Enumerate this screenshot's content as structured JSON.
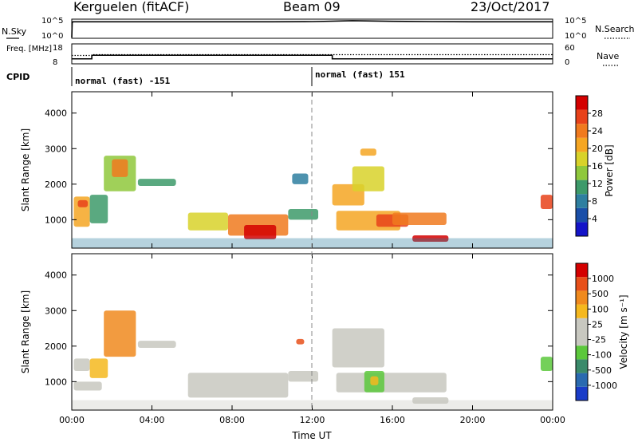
{
  "header": {
    "station": "Kerguelen (fitACF)",
    "beam": "Beam 09",
    "date": "23/Oct/2017"
  },
  "colors": {
    "power_scale": [
      "#1414c8",
      "#1a4fa8",
      "#2e7fa0",
      "#3d9a6a",
      "#8fc83c",
      "#d8d22a",
      "#f5a623",
      "#f07a1e",
      "#e8421a",
      "#d40000"
    ],
    "velocity_scale": [
      "#1a3cc8",
      "#2a6ab0",
      "#3a8a6a",
      "#5cc83c",
      "#c8c8c0",
      "#c8c8c0",
      "#f5b81e",
      "#f08a1e",
      "#e8501a",
      "#d40000"
    ]
  },
  "chart_data": [
    {
      "panel": "nsky_nsearch",
      "type": "line",
      "left_label": "N.Sky",
      "right_label": "N.Search",
      "left_ticks": [
        "10^5",
        "10^0"
      ],
      "right_ticks": [
        "10^5",
        "10^0"
      ],
      "series": [
        {
          "name": "N.Sky",
          "x": [
            0,
            0.02,
            0.05,
            2,
            6,
            10,
            12,
            14,
            16,
            18,
            20,
            22,
            24
          ],
          "y": [
            0.2,
            4.0,
            4.3,
            4.3,
            4.3,
            4.3,
            4.35,
            4.6,
            4.45,
            4.35,
            4.3,
            4.3,
            4.3
          ]
        }
      ],
      "ylim": [
        0,
        5
      ]
    },
    {
      "panel": "freq_nave",
      "type": "line",
      "left_label": "Freq. [MHz]",
      "right_label": "Nave",
      "left_ticks": [
        "18",
        "8"
      ],
      "right_ticks": [
        "60",
        "0"
      ],
      "series": [
        {
          "name": "Freq.",
          "x": [
            0,
            1.0,
            1.0,
            13.0,
            13.0,
            24
          ],
          "y": [
            10.5,
            10.5,
            12.3,
            12.3,
            10.5,
            10.5
          ]
        },
        {
          "name": "Nave",
          "x": [
            0,
            1.0,
            1.0,
            13.0,
            13.0,
            24
          ],
          "y": [
            12.2,
            12.2,
            12.6,
            12.6,
            12.6,
            12.6
          ]
        }
      ],
      "ylim": [
        8,
        18
      ]
    },
    {
      "panel": "cpid",
      "label": "CPID",
      "annotations": [
        {
          "text": "normal (fast) -151",
          "x": 0
        },
        {
          "text": "normal (fast) 151",
          "x": 12
        }
      ]
    },
    {
      "panel": "power",
      "type": "heatmap",
      "ylabel": "Slant Range [km]",
      "yticks": [
        1000,
        2000,
        3000,
        4000
      ],
      "ylim": [
        200,
        4600
      ],
      "xlim": [
        0,
        24
      ],
      "colorbar_label": "Power [dB]",
      "colorbar_ticks": [
        "28",
        "24",
        "20",
        "16",
        "12",
        "8",
        "4"
      ],
      "regions": [
        {
          "t0": 0.1,
          "t1": 0.9,
          "r0": 800,
          "r1": 1650,
          "c": 6
        },
        {
          "t0": 0.3,
          "t1": 0.8,
          "r0": 1350,
          "r1": 1550,
          "c": 8
        },
        {
          "t0": 0.9,
          "t1": 1.8,
          "r0": 900,
          "r1": 1700,
          "c": 3
        },
        {
          "t0": 1.6,
          "t1": 3.2,
          "r0": 1800,
          "r1": 2800,
          "c": 4
        },
        {
          "t0": 2.0,
          "t1": 2.8,
          "r0": 2200,
          "r1": 2700,
          "c": 7
        },
        {
          "t0": 3.3,
          "t1": 5.2,
          "r0": 1950,
          "r1": 2150,
          "c": 3
        },
        {
          "t0": 5.8,
          "t1": 7.8,
          "r0": 700,
          "r1": 1200,
          "c": 5
        },
        {
          "t0": 7.8,
          "t1": 10.8,
          "r0": 550,
          "r1": 1150,
          "c": 7
        },
        {
          "t0": 8.6,
          "t1": 10.2,
          "r0": 450,
          "r1": 850,
          "c": 9
        },
        {
          "t0": 10.8,
          "t1": 12.3,
          "r0": 1000,
          "r1": 1300,
          "c": 3
        },
        {
          "t0": 11.0,
          "t1": 11.8,
          "r0": 2000,
          "r1": 2300,
          "c": 2
        },
        {
          "t0": 13.0,
          "t1": 14.6,
          "r0": 1400,
          "r1": 2000,
          "c": 6
        },
        {
          "t0": 14.0,
          "t1": 15.6,
          "r0": 1800,
          "r1": 2500,
          "c": 5
        },
        {
          "t0": 13.2,
          "t1": 16.4,
          "r0": 700,
          "r1": 1250,
          "c": 6
        },
        {
          "t0": 15.2,
          "t1": 16.8,
          "r0": 800,
          "r1": 1150,
          "c": 8
        },
        {
          "t0": 16.0,
          "t1": 18.7,
          "r0": 850,
          "r1": 1200,
          "c": 7
        },
        {
          "t0": 17.0,
          "t1": 18.8,
          "r0": 380,
          "r1": 560,
          "c": 9
        },
        {
          "t0": 14.4,
          "t1": 15.2,
          "r0": 2800,
          "r1": 3000,
          "c": 6
        },
        {
          "t0": 23.4,
          "t1": 24.0,
          "r0": 1300,
          "r1": 1700,
          "c": 8
        }
      ]
    },
    {
      "panel": "velocity",
      "type": "heatmap",
      "ylabel": "Slant Range [km]",
      "yticks": [
        1000,
        2000,
        3000,
        4000
      ],
      "ylim": [
        200,
        4600
      ],
      "xlim": [
        0,
        24
      ],
      "xlabel": "Time UT",
      "xticks": [
        "00:00",
        "04:00",
        "08:00",
        "12:00",
        "16:00",
        "20:00",
        "00:00"
      ],
      "colorbar_label": "Velocity [m s⁻¹]",
      "colorbar_ticks": [
        "1000",
        "500",
        "100",
        "25",
        "-25",
        "-100",
        "-500",
        "-1000"
      ],
      "regions": [
        {
          "t0": 0.1,
          "t1": 0.9,
          "r0": 1300,
          "r1": 1650,
          "c": 4
        },
        {
          "t0": 0.9,
          "t1": 1.8,
          "r0": 1100,
          "r1": 1650,
          "c": 6
        },
        {
          "t0": 1.6,
          "t1": 3.2,
          "r0": 1700,
          "r1": 3000,
          "c": 7
        },
        {
          "t0": 0.1,
          "t1": 1.5,
          "r0": 750,
          "r1": 1000,
          "c": 4
        },
        {
          "t0": 3.3,
          "t1": 5.2,
          "r0": 1950,
          "r1": 2150,
          "c": 4
        },
        {
          "t0": 5.8,
          "t1": 10.8,
          "r0": 550,
          "r1": 1250,
          "c": 4
        },
        {
          "t0": 10.8,
          "t1": 12.3,
          "r0": 1000,
          "r1": 1300,
          "c": 4
        },
        {
          "t0": 11.2,
          "t1": 11.6,
          "r0": 2050,
          "r1": 2200,
          "c": 8
        },
        {
          "t0": 13.0,
          "t1": 15.6,
          "r0": 1400,
          "r1": 2500,
          "c": 4
        },
        {
          "t0": 13.2,
          "t1": 18.7,
          "r0": 700,
          "r1": 1250,
          "c": 4
        },
        {
          "t0": 14.6,
          "t1": 15.6,
          "r0": 700,
          "r1": 1300,
          "c": 3
        },
        {
          "t0": 14.9,
          "t1": 15.3,
          "r0": 900,
          "r1": 1150,
          "c": 6
        },
        {
          "t0": 17.0,
          "t1": 18.8,
          "r0": 380,
          "r1": 560,
          "c": 4
        },
        {
          "t0": 23.4,
          "t1": 24.0,
          "r0": 1300,
          "r1": 1700,
          "c": 3
        }
      ]
    }
  ]
}
